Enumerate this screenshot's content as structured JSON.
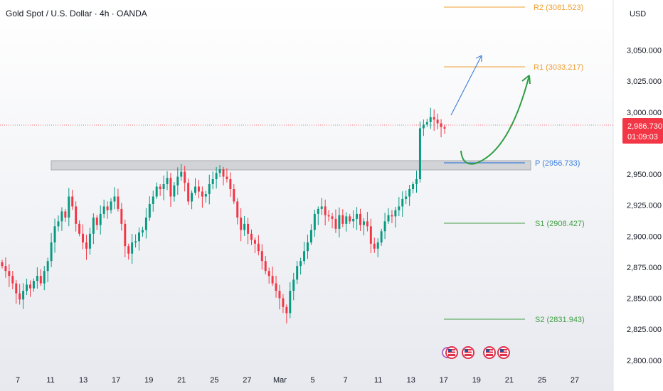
{
  "header": {
    "title": "Gold Spot / U.S. Dollar · 4h · OANDA"
  },
  "currency": "USD",
  "price_label": {
    "price": "2,986.730",
    "countdown": "01:09:03"
  },
  "colors": {
    "up": "#089981",
    "down": "#f23645",
    "orange": "#f0a032",
    "blue": "#3d7ddb",
    "green": "#43a047",
    "arrow_green": "#2f9e44",
    "arrow_blue": "#4a85d8",
    "price_red": "#f23645"
  },
  "chart_data": {
    "type": "candlestick",
    "title": "Gold Spot / U.S. Dollar · 4h · OANDA",
    "ylim": [
      2785,
      3095
    ],
    "y_ticks": [
      {
        "value": 3050,
        "label": "3,050.000"
      },
      {
        "value": 3025,
        "label": "3,025.000"
      },
      {
        "value": 3000,
        "label": "3,000.000"
      },
      {
        "value": 2950,
        "label": "2,950.000"
      },
      {
        "value": 2925,
        "label": "2,925.000"
      },
      {
        "value": 2900,
        "label": "2,900.000"
      },
      {
        "value": 2875,
        "label": "2,875.000"
      },
      {
        "value": 2850,
        "label": "2,850.000"
      },
      {
        "value": 2825,
        "label": "2,825.000"
      },
      {
        "value": 2800,
        "label": "2,800.000"
      }
    ],
    "x_ticks": [
      "7",
      "11",
      "13",
      "17",
      "19",
      "21",
      "25",
      "27",
      "Mar",
      "5",
      "7",
      "11",
      "13",
      "17",
      "19",
      "21",
      "25",
      "27"
    ],
    "closes": [
      2876,
      2872,
      2868,
      2862,
      2854,
      2849,
      2856,
      2861,
      2858,
      2864,
      2868,
      2862,
      2872,
      2880,
      2895,
      2908,
      2912,
      2920,
      2915,
      2932,
      2924,
      2910,
      2902,
      2895,
      2890,
      2902,
      2915,
      2909,
      2918,
      2924,
      2921,
      2928,
      2932,
      2922,
      2910,
      2892,
      2886,
      2895,
      2896,
      2903,
      2905,
      2915,
      2926,
      2932,
      2940,
      2938,
      2942,
      2947,
      2932,
      2941,
      2948,
      2952,
      2943,
      2928,
      2935,
      2940,
      2936,
      2932,
      2934,
      2942,
      2946,
      2951,
      2954,
      2948,
      2946,
      2938,
      2928,
      2915,
      2905,
      2910,
      2902,
      2897,
      2894,
      2888,
      2880,
      2872,
      2868,
      2862,
      2856,
      2850,
      2843,
      2838,
      2856,
      2865,
      2876,
      2880,
      2888,
      2895,
      2905,
      2918,
      2922,
      2924,
      2917,
      2916,
      2914,
      2906,
      2917,
      2910,
      2916,
      2912,
      2914,
      2918,
      2909,
      2912,
      2908,
      2894,
      2890,
      2895,
      2904,
      2912,
      2917,
      2916,
      2921,
      2924,
      2930,
      2932,
      2938,
      2942,
      2946,
      2987,
      2990,
      2992,
      2996,
      2994,
      2991,
      2988,
      2986.73
    ],
    "pivots": {
      "R2": {
        "value": 3081.523,
        "label": "R2 (3081.523)"
      },
      "R1": {
        "value": 3033.217,
        "label": "R1 (3033.217)"
      },
      "P": {
        "value": 2956.733,
        "label": "P (2956.733)"
      },
      "S1": {
        "value": 2908.427,
        "label": "S1 (2908.427)"
      },
      "S2": {
        "value": 2831.943,
        "label": "S2 (2831.943)"
      }
    },
    "resistance_zone": [
      2952,
      2960
    ],
    "current_price": 2986.73,
    "event_markers": 4
  }
}
